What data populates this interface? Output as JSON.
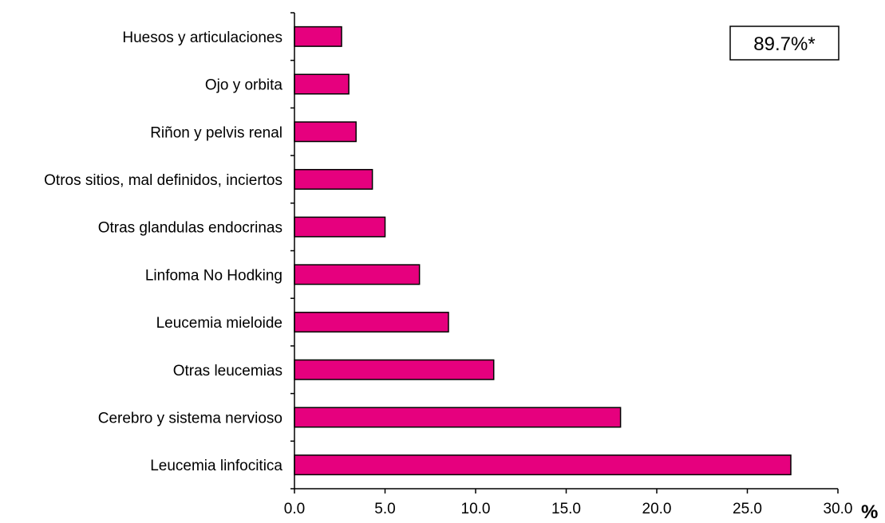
{
  "chart_data": {
    "type": "bar",
    "orientation": "horizontal",
    "categories": [
      "Leucemia linfocitica",
      "Cerebro y sistema nervioso",
      "Otras leucemias",
      "Leucemia mieloide",
      "Linfoma No Hodking",
      "Otras glandulas endocrinas",
      "Otros sitios, mal definidos, inciertos",
      "Riñon y pelvis renal",
      "Ojo y orbita",
      "Huesos y articulaciones"
    ],
    "values": [
      27.4,
      18.0,
      11.0,
      8.5,
      6.9,
      5.0,
      4.3,
      3.4,
      3.0,
      2.6
    ],
    "xlabel": "",
    "ylabel": "",
    "unit_label": "%",
    "xlim": [
      0,
      30
    ],
    "xticks": [
      "0.0",
      "5.0",
      "10.0",
      "15.0",
      "20.0",
      "25.0",
      "30.0"
    ],
    "annotation": "89.7%*",
    "grid": false,
    "colors": {
      "bar_fill": "#E6007E",
      "bar_stroke": "#000000",
      "axis": "#000000"
    }
  }
}
